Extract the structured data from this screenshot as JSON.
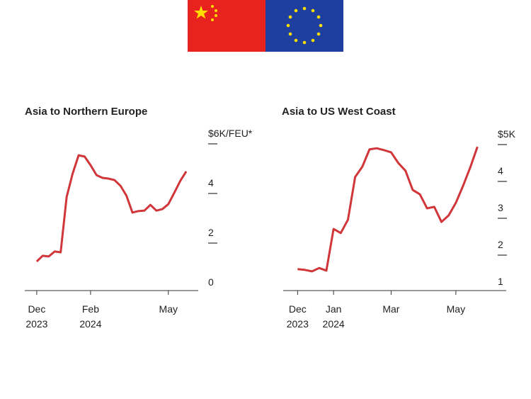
{
  "chart_data": [
    {
      "type": "line",
      "title": "Asia to Northern Europe",
      "color": "#d0363a",
      "values": [
        1.26,
        1.49,
        1.46,
        1.66,
        1.63,
        3.86,
        4.8,
        5.54,
        5.49,
        5.14,
        4.74,
        4.63,
        4.6,
        4.54,
        4.31,
        3.91,
        3.23,
        3.29,
        3.31,
        3.54,
        3.31,
        3.37,
        3.57,
        4.03,
        4.51,
        4.89
      ],
      "xlim": [
        -2,
        27
      ],
      "xticks": [
        {
          "value": 0,
          "label": "Dec 2023"
        },
        {
          "value": 9,
          "label": "Feb 2024"
        },
        {
          "value": 22,
          "label": "May"
        }
      ],
      "ylim": [
        0,
        6
      ],
      "yticks": [
        0,
        2,
        4,
        {
          "value": 6,
          "label": "$6K/FEU*"
        }
      ]
    },
    {
      "type": "line",
      "title": "Asia to US West Coast",
      "color": "#d0363a",
      "values": [
        1.62,
        1.6,
        1.56,
        1.65,
        1.58,
        2.71,
        2.6,
        2.96,
        4.12,
        4.4,
        4.87,
        4.9,
        4.85,
        4.79,
        4.5,
        4.29,
        3.77,
        3.65,
        3.27,
        3.31,
        2.9,
        3.08,
        3.42,
        3.88,
        4.38,
        4.94
      ],
      "xlim": [
        -2,
        29
      ],
      "xticks": [
        {
          "value": 0,
          "label": "Dec 2023"
        },
        {
          "value": 5,
          "label": "Jan 2024"
        },
        {
          "value": 13,
          "label": "Mar"
        },
        {
          "value": 22,
          "label": "May"
        }
      ],
      "ylim": [
        1,
        5
      ],
      "yticks": [
        1,
        2,
        3,
        4,
        {
          "value": 5,
          "label": "$5K"
        }
      ]
    }
  ]
}
